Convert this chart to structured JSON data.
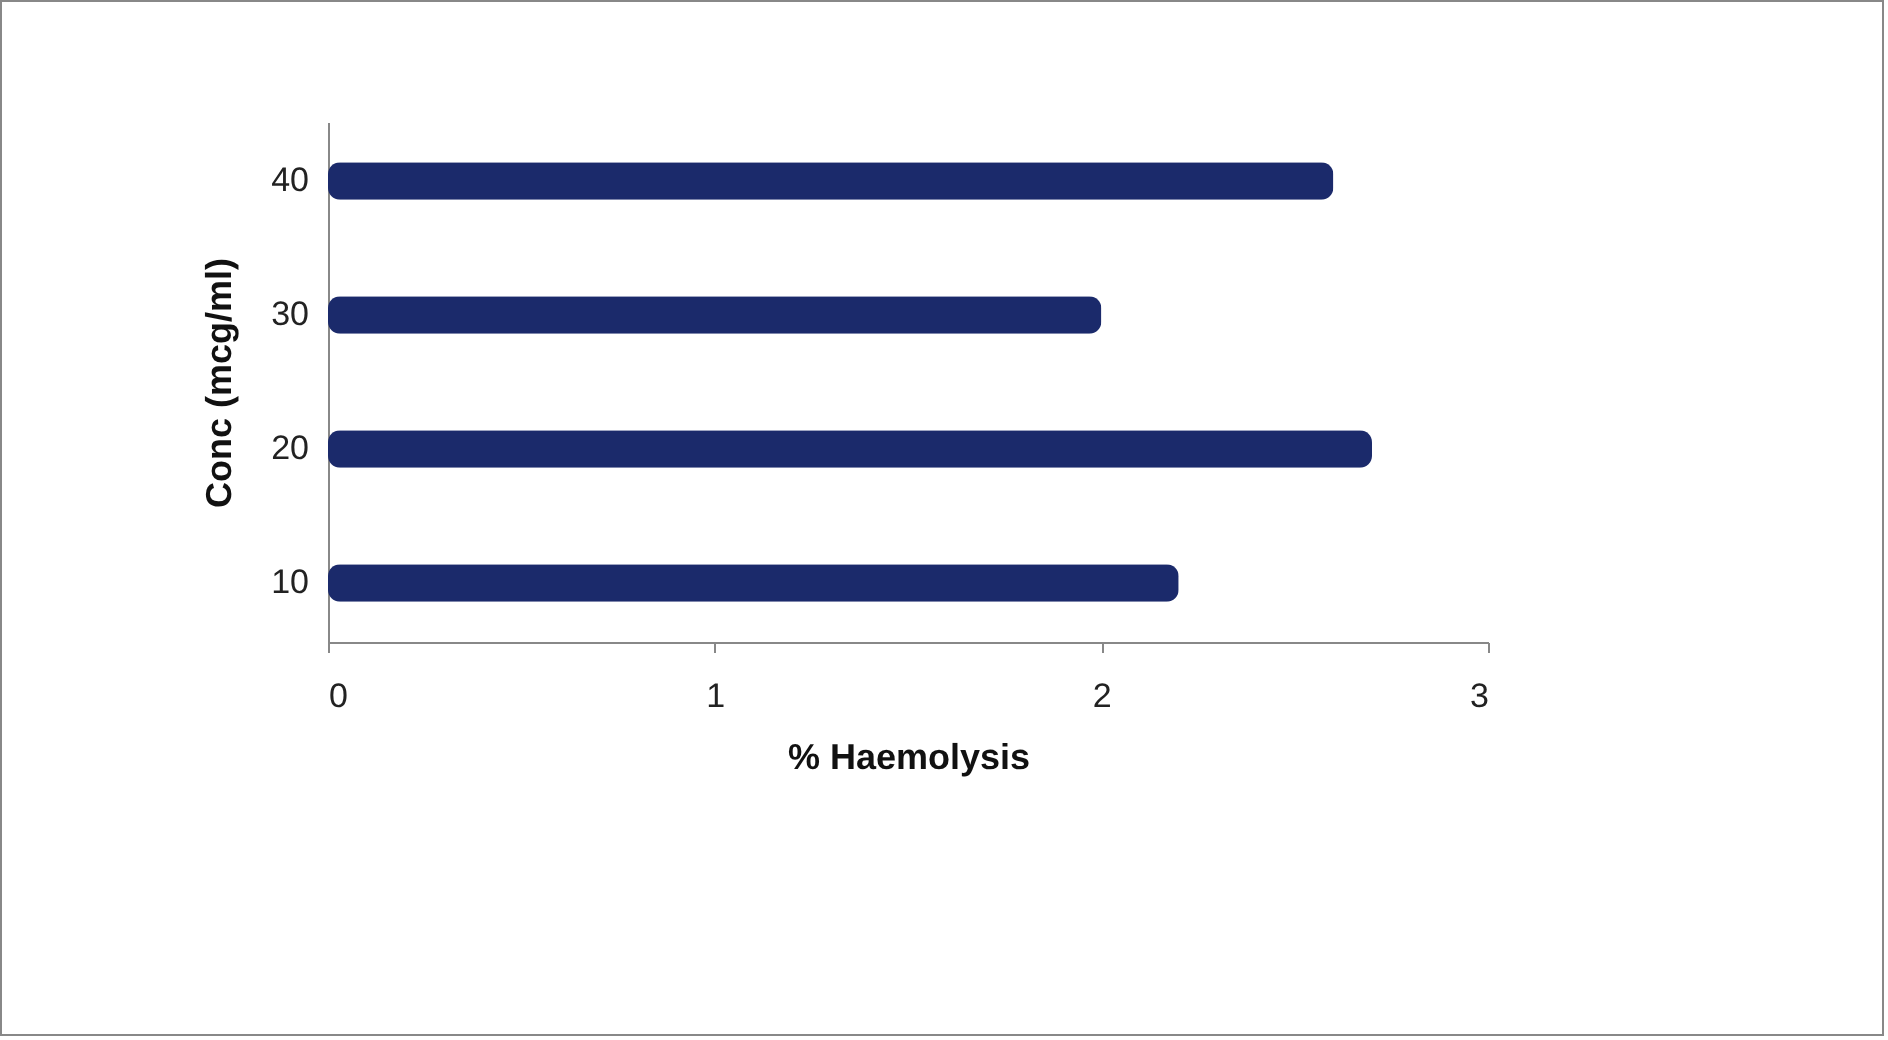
{
  "chart_data": {
    "type": "bar",
    "orientation": "horizontal",
    "xlabel": "% Haemolysis",
    "ylabel": "Conc (mcg/ml)",
    "categories": [
      "40",
      "30",
      "20",
      "10"
    ],
    "series": [
      {
        "color": "#1b2a6b",
        "values": [
          2.6,
          2.0,
          2.7,
          2.2
        ]
      }
    ],
    "xlim": [
      0,
      3
    ],
    "xticks": [
      0,
      1,
      2,
      3
    ],
    "grid": false,
    "legend": false
  }
}
